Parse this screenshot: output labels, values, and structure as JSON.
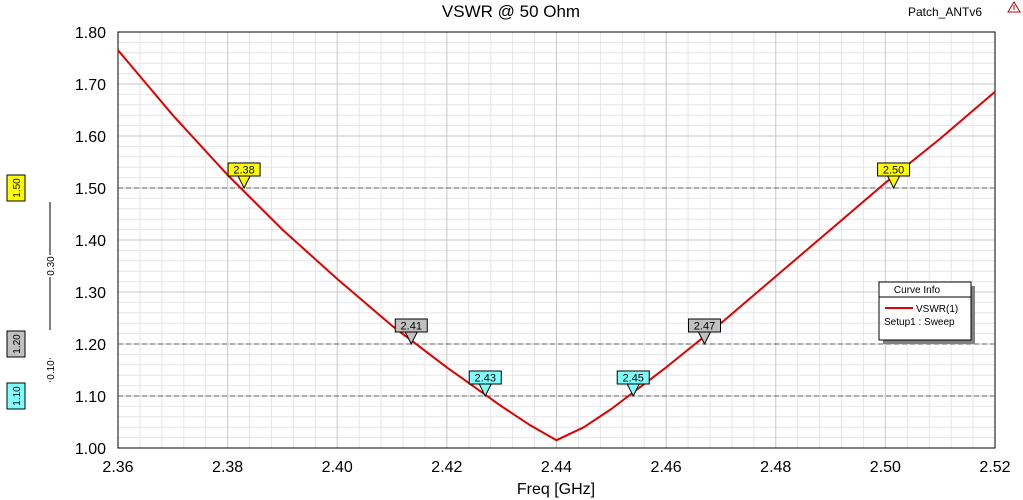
{
  "header": {
    "title": "VSWR @ 50 Ohm",
    "project": "Patch_ANTv6"
  },
  "chart_data": {
    "type": "line",
    "title": "VSWR @ 50 Ohm",
    "xlabel": "Freq [GHz]",
    "ylabel": "",
    "xlim": [
      2.36,
      2.52
    ],
    "ylim": [
      1.0,
      1.8
    ],
    "x_ticks": [
      "2.36",
      "2.38",
      "2.40",
      "2.42",
      "2.44",
      "2.46",
      "2.48",
      "2.50",
      "2.52"
    ],
    "y_ticks": [
      "1.00",
      "1.10",
      "1.20",
      "1.30",
      "1.40",
      "1.50",
      "1.60",
      "1.70",
      "1.80"
    ],
    "grid": true,
    "series": [
      {
        "name": "VSWR(1)",
        "color": "#e00000",
        "x": [
          2.36,
          2.37,
          2.38,
          2.39,
          2.4,
          2.41,
          2.42,
          2.43,
          2.435,
          2.44,
          2.445,
          2.45,
          2.46,
          2.47,
          2.48,
          2.49,
          2.5,
          2.51,
          2.52
        ],
        "y": [
          1.765,
          1.64,
          1.525,
          1.42,
          1.325,
          1.235,
          1.155,
          1.08,
          1.045,
          1.015,
          1.04,
          1.075,
          1.155,
          1.24,
          1.33,
          1.42,
          1.51,
          1.595,
          1.685
        ]
      }
    ],
    "reference_lines": [
      {
        "y": 1.5,
        "label": "1.50",
        "color": "#ffff00"
      },
      {
        "y": 1.2,
        "label": "1.20",
        "color": "#c0c0c0"
      },
      {
        "y": 1.1,
        "label": "1.10",
        "color": "#80ffff"
      }
    ],
    "delta_labels": [
      {
        "from": 1.2,
        "to": 1.5,
        "label": "0.30"
      },
      {
        "from": 1.1,
        "to": 1.2,
        "label": "0.10"
      }
    ],
    "markers": [
      {
        "x": 2.383,
        "y": 1.5,
        "label": "2.38",
        "color": "#ffff00"
      },
      {
        "x": 2.4135,
        "y": 1.2,
        "label": "2.41",
        "color": "#c0c0c0"
      },
      {
        "x": 2.427,
        "y": 1.1,
        "label": "2.43",
        "color": "#80ffff"
      },
      {
        "x": 2.454,
        "y": 1.1,
        "label": "2.45",
        "color": "#80ffff"
      },
      {
        "x": 2.467,
        "y": 1.2,
        "label": "2.47",
        "color": "#c0c0c0"
      },
      {
        "x": 2.5015,
        "y": 1.5,
        "label": "2.50",
        "color": "#ffff00"
      }
    ],
    "legend": {
      "title": "Curve Info",
      "entry": "VSWR(1)",
      "subtitle": "Setup1 : Sweep",
      "position": "right"
    }
  }
}
